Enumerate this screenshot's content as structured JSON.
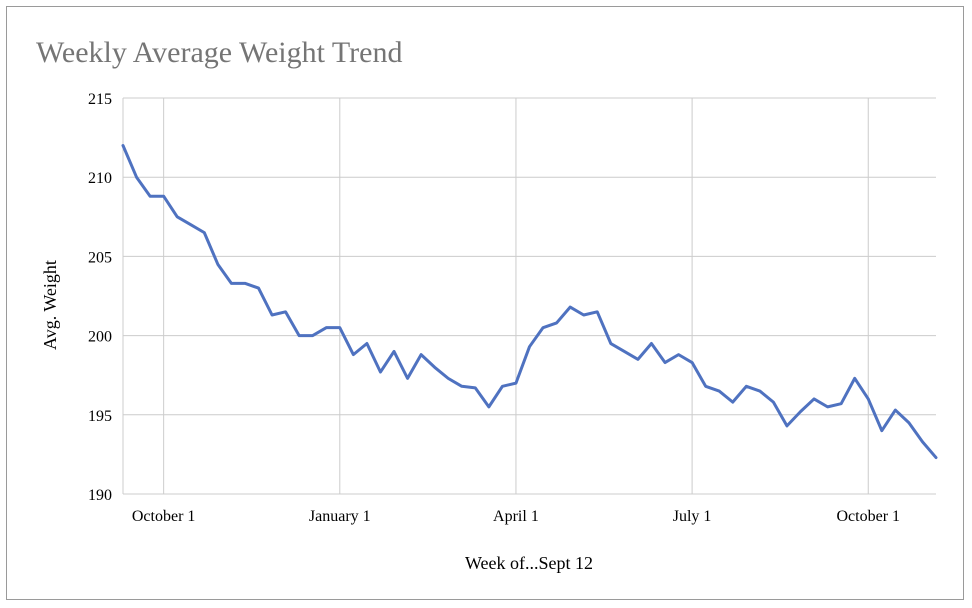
{
  "chart_data": {
    "type": "line",
    "title": "Weekly Average Weight Trend",
    "xlabel": "Week of...Sept 12",
    "ylabel": "Avg. Weight",
    "ylim": [
      190,
      215
    ],
    "yticks": [
      "190",
      "195",
      "200",
      "205",
      "210",
      "215"
    ],
    "xtick_labels": [
      "October 1",
      "January 1",
      "April 1",
      "July 1",
      "October 1"
    ],
    "grid": true,
    "legend": "none",
    "series_color": "#4f72c0",
    "x": [
      "Sep 12",
      "Sep 19",
      "Sep 26",
      "Oct 3",
      "Oct 10",
      "Oct 17",
      "Oct 24",
      "Oct 31",
      "Nov 7",
      "Nov 14",
      "Nov 21",
      "Nov 28",
      "Dec 5",
      "Dec 12",
      "Dec 19",
      "Dec 26",
      "Jan 2",
      "Jan 9",
      "Jan 16",
      "Jan 23",
      "Jan 30",
      "Feb 6",
      "Feb 13",
      "Feb 20",
      "Feb 27",
      "Mar 6",
      "Mar 13",
      "Mar 20",
      "Mar 27",
      "Apr 3",
      "Apr 10",
      "Apr 17",
      "Apr 24",
      "May 1",
      "May 8",
      "May 15",
      "May 22",
      "May 29",
      "Jun 5",
      "Jun 12",
      "Jun 19",
      "Jun 26",
      "Jul 3",
      "Jul 10",
      "Jul 17",
      "Jul 24",
      "Jul 31",
      "Aug 7",
      "Aug 14",
      "Aug 21",
      "Aug 28",
      "Sep 4",
      "Sep 11",
      "Sep 18",
      "Sep 25",
      "Oct 2",
      "Oct 9",
      "Oct 16",
      "Oct 23",
      "Oct 30",
      "Nov 6"
    ],
    "series": [
      {
        "values": [
          212.0,
          210.0,
          208.8,
          208.8,
          207.5,
          207.0,
          206.5,
          204.5,
          203.3,
          203.3,
          203.0,
          201.3,
          201.5,
          200.0,
          200.0,
          200.5,
          200.5,
          198.8,
          199.5,
          197.7,
          199.0,
          197.3,
          198.8,
          198.0,
          197.3,
          196.8,
          196.7,
          195.5,
          196.8,
          197.0,
          199.3,
          200.5,
          200.8,
          201.8,
          201.3,
          201.5,
          199.5,
          199.0,
          198.5,
          199.5,
          198.3,
          198.8,
          198.3,
          196.8,
          196.5,
          195.8,
          196.8,
          196.5,
          195.8,
          194.3,
          195.2,
          196.0,
          195.5,
          195.7,
          197.3,
          196.0,
          194.0,
          195.3,
          194.5,
          193.3,
          192.3
        ]
      }
    ]
  }
}
